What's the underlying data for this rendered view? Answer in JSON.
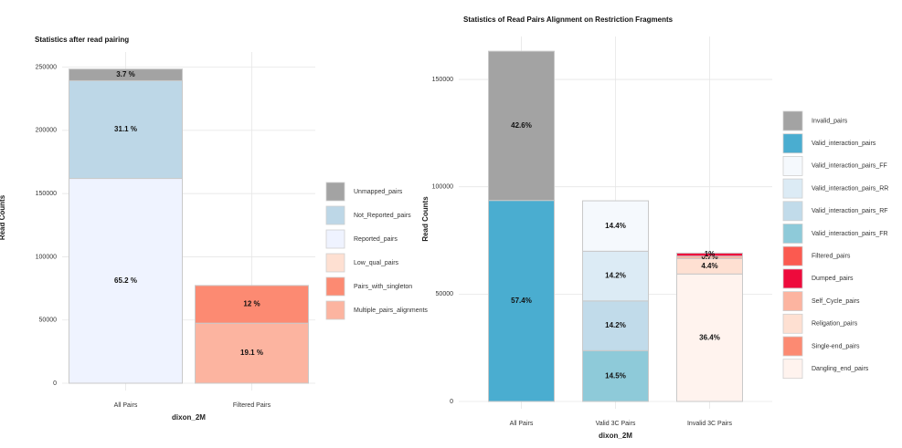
{
  "chart_data": [
    {
      "type": "stacked_bar",
      "title": "Statistics after read pairing",
      "x_label": "dixon_2M",
      "y_label": "Read Counts",
      "categories": [
        "All Pairs",
        "Filtered Pairs"
      ],
      "ylim": [
        0,
        262000
      ],
      "yticks": [
        0,
        50000,
        100000,
        150000,
        200000,
        250000
      ],
      "grid": true,
      "series": [
        {
          "name": "Unmapped_pairs",
          "color": "#a3a3a3",
          "values": [
            9200,
            null
          ],
          "value_labels": [
            "3.7 %",
            null
          ]
        },
        {
          "name": "Not_Reported_pairs",
          "color": "#bdd7e7",
          "values": [
            77300,
            null
          ],
          "value_labels": [
            "31.1 %",
            null
          ]
        },
        {
          "name": "Reported_pairs",
          "color": "#eff3ff",
          "values": [
            162000,
            null
          ],
          "value_labels": [
            "65.2 %",
            null
          ]
        },
        {
          "name": "Low_qual_pairs",
          "color": "#fee0d2",
          "values": [
            null,
            null
          ],
          "value_labels": [
            null,
            null
          ]
        },
        {
          "name": "Pairs_with_singleton",
          "color": "#fc8a72",
          "values": [
            null,
            29800
          ],
          "value_labels": [
            null,
            "12 %"
          ]
        },
        {
          "name": "Multiple_pairs_alignments",
          "color": "#fcb4a0",
          "values": [
            null,
            47500
          ],
          "value_labels": [
            null,
            "19.1 %"
          ]
        }
      ]
    },
    {
      "type": "stacked_bar",
      "title": "Statistics of Read Pairs Alignment on Restriction Fragments",
      "x_label": "dixon_2M",
      "y_label": "Read Counts",
      "categories": [
        "All Pairs",
        "Valid 3C Pairs",
        "Invalid 3C Pairs"
      ],
      "ylim": [
        0,
        170000
      ],
      "yticks": [
        0,
        50000,
        100000,
        150000
      ],
      "grid": true,
      "series": [
        {
          "name": "Invalid_pairs",
          "color": "#a3a3a3",
          "values": [
            69500,
            null,
            null
          ],
          "value_labels": [
            "42.6%",
            null,
            null
          ]
        },
        {
          "name": "Valid_interaction_pairs",
          "color": "#4aadd0",
          "values": [
            93640,
            null,
            null
          ],
          "value_labels": [
            "57.4%",
            null,
            null
          ]
        },
        {
          "name": "Valid_interaction_pairs_FF",
          "color": "#f5f9fd",
          "values": [
            null,
            23490,
            null
          ],
          "value_labels": [
            null,
            "14.4%",
            null
          ]
        },
        {
          "name": "Valid_interaction_pairs_RR",
          "color": "#dcebf5",
          "values": [
            null,
            23165,
            null
          ],
          "value_labels": [
            null,
            "14.2%",
            null
          ]
        },
        {
          "name": "Valid_interaction_pairs_RF",
          "color": "#c1dbea",
          "values": [
            null,
            23165,
            null
          ],
          "value_labels": [
            null,
            "14.2%",
            null
          ]
        },
        {
          "name": "Valid_interaction_pairs_FR",
          "color": "#8ecad9",
          "values": [
            null,
            23655,
            null
          ],
          "value_labels": [
            null,
            "14.5%",
            null
          ]
        },
        {
          "name": "Filtered_pairs",
          "color": "#fb5a50",
          "values": [
            null,
            null,
            null
          ],
          "value_labels": [
            null,
            null,
            null
          ]
        },
        {
          "name": "Dumped_pairs",
          "color": "#ee0a3c",
          "values": [
            null,
            null,
            1400
          ],
          "value_labels": [
            null,
            null,
            "1%"
          ]
        },
        {
          "name": "Self_Cycle_pairs",
          "color": "#fcb4a0",
          "values": [
            null,
            null,
            1142
          ],
          "value_labels": [
            null,
            null,
            "0.7%"
          ]
        },
        {
          "name": "Religation_pairs",
          "color": "#fee0d2",
          "values": [
            null,
            null,
            7178
          ],
          "value_labels": [
            null,
            null,
            "4.4%"
          ]
        },
        {
          "name": "Single-end_pairs",
          "color": "#fc8a72",
          "values": [
            null,
            null,
            null
          ],
          "value_labels": [
            null,
            null,
            null
          ]
        },
        {
          "name": "Dangling_end_pairs",
          "color": "#fff3ee",
          "values": [
            null,
            null,
            59380
          ],
          "value_labels": [
            null,
            null,
            "36.4%"
          ]
        }
      ]
    }
  ]
}
